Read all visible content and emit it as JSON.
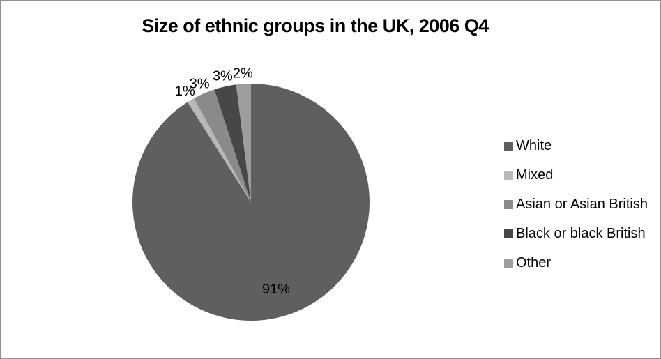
{
  "title": "Size of ethnic groups in the UK, 2006 Q4",
  "colors": {
    "background": "#ffffff",
    "frame_border": "#929292",
    "label_text": "#000000"
  },
  "legend": {
    "position": "right"
  },
  "chart_data": {
    "type": "pie",
    "title": "Size of ethnic groups in the UK, 2006 Q4",
    "categories": [
      "White",
      "Mixed",
      "Asian or Asian British",
      "Black or black British",
      "Other"
    ],
    "values": [
      91,
      1,
      3,
      3,
      2
    ],
    "unit": "percent",
    "data_labels": [
      "91%",
      "1%",
      "3%",
      "3%",
      "2%"
    ],
    "slice_colors": [
      "#5f5f5f",
      "#b8b8b8",
      "#8a8a8a",
      "#474747",
      "#9d9d9d"
    ],
    "start_angle_deg": 0,
    "direction": "clockwise",
    "legend_position": "right",
    "legend_entries": [
      "White",
      "Mixed",
      "Asian or Asian British",
      "Black or black British",
      "Other"
    ]
  }
}
